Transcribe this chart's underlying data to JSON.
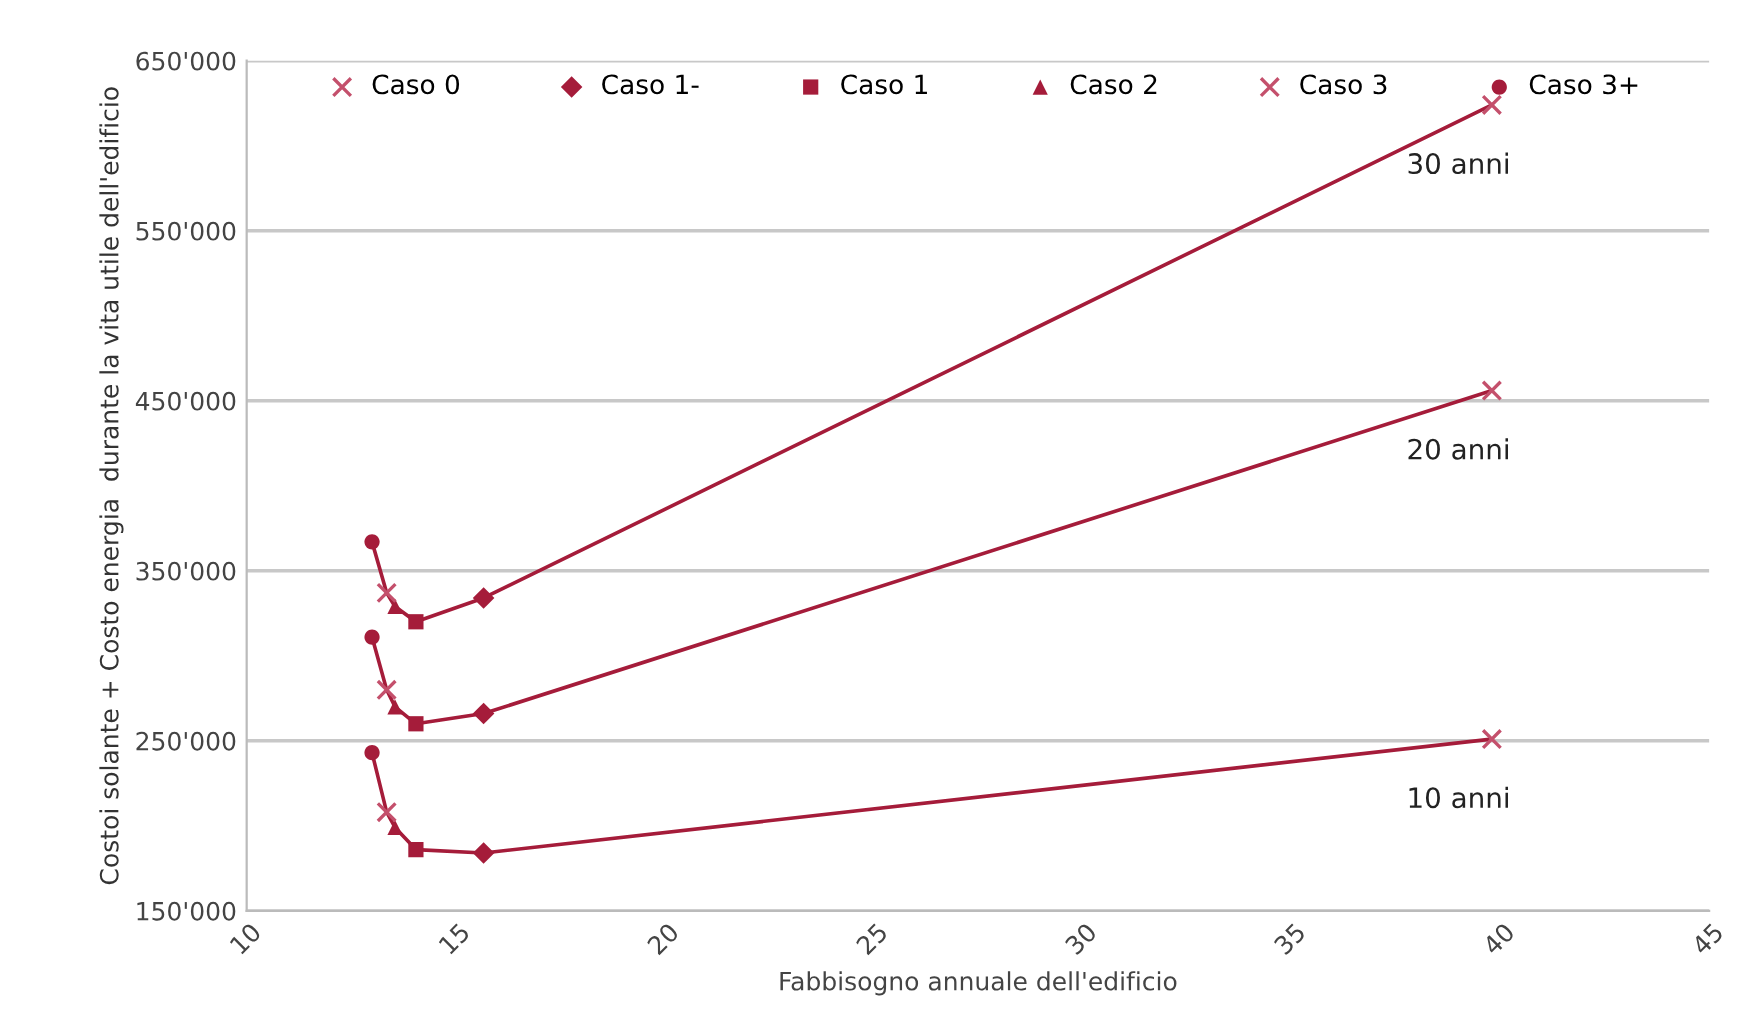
{
  "chart_data": {
    "type": "line",
    "xlabel": "Fabbisogno annuale dell'edificio",
    "ylabel": "Costoi solante + Costo energia  durante la vita utile dell'edificio",
    "xlim": [
      10,
      45
    ],
    "xticks": [
      10,
      15,
      20,
      25,
      30,
      35,
      40,
      45
    ],
    "ylim": [
      150000,
      650000
    ],
    "yticks": [
      {
        "value": 150000,
        "label": "150'000"
      },
      {
        "value": 250000,
        "label": "250'000"
      },
      {
        "value": 350000,
        "label": "350'000"
      },
      {
        "value": 450000,
        "label": "450'000"
      },
      {
        "value": 550000,
        "label": "550'000"
      },
      {
        "value": 650000,
        "label": "650'000"
      }
    ],
    "grid": "y",
    "legend": "top",
    "series": [
      {
        "color": "#a51c3a",
        "marker": "none",
        "x": [
          13.0,
          13.35,
          13.55,
          14.05,
          15.67,
          39.8
        ],
        "values": [
          367000,
          337000,
          329000,
          320000,
          334000,
          624000
        ]
      },
      {
        "color": "#a51c3a",
        "marker": "none",
        "x": [
          13.0,
          13.35,
          13.55,
          14.05,
          15.67,
          39.8
        ],
        "values": [
          311000,
          280000,
          270000,
          260000,
          266000,
          456000
        ]
      },
      {
        "color": "#a51c3a",
        "marker": "none",
        "x": [
          13.0,
          13.35,
          13.55,
          14.05,
          15.67,
          39.8
        ],
        "values": [
          243000,
          208000,
          199000,
          186000,
          184000,
          251000
        ]
      },
      {
        "type": "scatter",
        "name": "Caso 0",
        "color": "#c4506c",
        "marker": "cross",
        "x": [
          39.8,
          39.8,
          39.8
        ],
        "values": [
          251000,
          456000,
          624000
        ]
      },
      {
        "type": "scatter",
        "name": "Caso 1-",
        "color": "#a51c3a",
        "marker": "diamond",
        "x": [
          15.67,
          15.67,
          15.67
        ],
        "values": [
          184000,
          266000,
          334000
        ]
      },
      {
        "type": "scatter",
        "name": "Caso 1",
        "color": "#a51c3a",
        "marker": "square",
        "x": [
          14.05,
          14.05,
          14.05
        ],
        "values": [
          186000,
          260000,
          320000
        ]
      },
      {
        "type": "scatter",
        "name": "Caso 2",
        "color": "#a51c3a",
        "marker": "triangle",
        "x": [
          13.55,
          13.55,
          13.55
        ],
        "values": [
          199000,
          270000,
          329000
        ]
      },
      {
        "type": "scatter",
        "name": "Caso 3",
        "color": "#c4506c",
        "marker": "cross",
        "x": [
          13.35,
          13.35,
          13.35
        ],
        "values": [
          208000,
          280000,
          337000
        ]
      },
      {
        "type": "scatter",
        "name": "Caso 3+",
        "color": "#a51c3a",
        "marker": "circle",
        "x": [
          13.0,
          13.0,
          13.0
        ],
        "values": [
          243000,
          311000,
          367000
        ]
      }
    ],
    "annotations": [
      "30 anni",
      "20 anni",
      "10 anni"
    ]
  }
}
